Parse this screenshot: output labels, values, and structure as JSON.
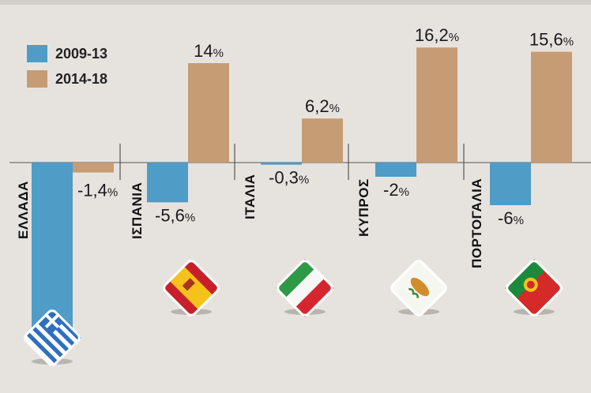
{
  "chart_data": {
    "type": "bar",
    "title": "",
    "xlabel": "",
    "ylabel": "",
    "categories": [
      "ΕΛΛΑΔΑ",
      "ΙΣΠΑΝΙΑ",
      "ΙΤΑΛΙΑ",
      "ΚΥΠΡΟΣ",
      "ΠΟΡΤΟΓΑΛΙΑ"
    ],
    "series": [
      {
        "name": "2009-13",
        "color": "#4f9cc6",
        "values": [
          -26,
          -5.6,
          -0.3,
          -2,
          -6
        ],
        "labels": [
          "",
          "-5,6%",
          "-0,3%",
          "-2%",
          "-6%"
        ]
      },
      {
        "name": "2014-18",
        "color": "#c69c74",
        "values": [
          -1.4,
          14,
          6.2,
          16.2,
          15.6
        ],
        "labels": [
          "-1,4%",
          "14%",
          "6,2%",
          "16,2%",
          "15,6%"
        ]
      }
    ],
    "legend_position": "top-left",
    "flag_icons": [
      "greece-flag-icon",
      "spain-flag-icon",
      "italy-flag-icon",
      "cyprus-flag-icon",
      "portugal-flag-icon"
    ]
  }
}
